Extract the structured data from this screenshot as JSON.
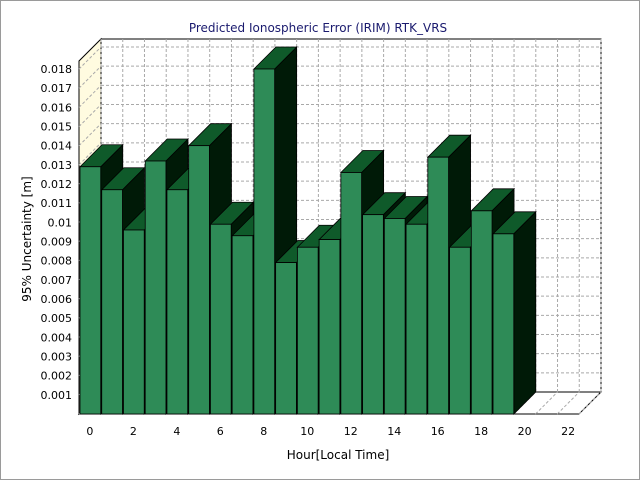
{
  "chart_data": {
    "type": "bar",
    "title": "Predicted Ionospheric Error (IRIM) RTK_VRS",
    "xlabel": "Hour[Local Time]",
    "ylabel": "95% Uncertainty [m]",
    "x": [
      0,
      1,
      2,
      3,
      4,
      5,
      6,
      7,
      8,
      9,
      10,
      11,
      12,
      13,
      14,
      15,
      16,
      17,
      18,
      19
    ],
    "values": [
      0.0129,
      0.0117,
      0.0096,
      0.0132,
      0.0117,
      0.014,
      0.0099,
      0.0093,
      0.018,
      0.0079,
      0.0087,
      0.0091,
      0.0126,
      0.0104,
      0.0102,
      0.0099,
      0.0134,
      0.0087,
      0.0106,
      0.0094
    ],
    "xlim": [
      0,
      23
    ],
    "ylim": [
      0,
      0.018
    ],
    "yticks": [
      "0.001",
      "0.002",
      "0.003",
      "0.004",
      "0.005",
      "0.006",
      "0.007",
      "0.008",
      "0.009",
      "0.01",
      "0.011",
      "0.012",
      "0.013",
      "0.014",
      "0.015",
      "0.016",
      "0.017",
      "0.018"
    ],
    "xticks": [
      "0",
      "2",
      "4",
      "6",
      "8",
      "10",
      "12",
      "14",
      "16",
      "18",
      "20",
      "22"
    ],
    "grid": true,
    "style": "3d",
    "colors": {
      "bar_front": "#2e8b57",
      "bar_top": "#0f5a2a",
      "bar_side": "#001a07",
      "back_wall": "#ffffff",
      "left_wall": "#fffbe0",
      "grid": "#a9a9a9",
      "title": "#1a1a6e"
    }
  }
}
